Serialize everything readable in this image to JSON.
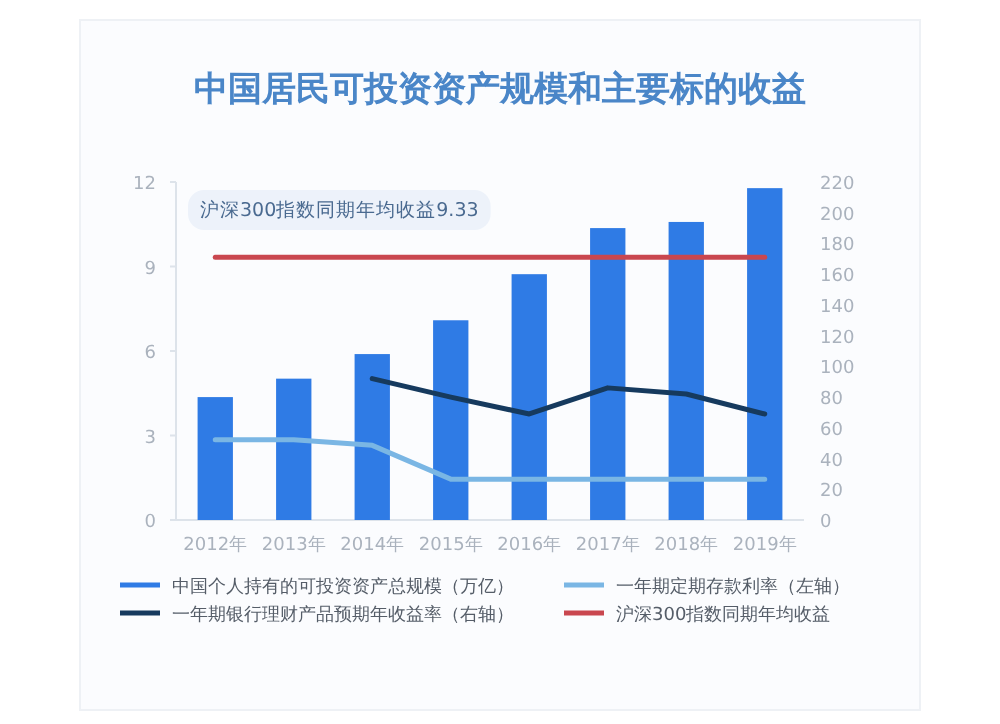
{
  "chart_data": {
    "type": "bar",
    "title": "中国居民可投资资产规模和主要标的收益",
    "categories": [
      "2012年",
      "2013年",
      "2014年",
      "2015年",
      "2016年",
      "2017年",
      "2018年",
      "2019年"
    ],
    "series": [
      {
        "name": "中国个人持有的可投资资产总规模（万亿）",
        "axis": "y2",
        "color": "#2f7be5",
        "values": [
          80,
          92,
          108,
          130,
          160,
          190,
          194,
          216
        ]
      },
      {
        "name": "一年期定期存款利率（左轴）",
        "type": "line",
        "color": "#7ab6e4",
        "values": [
          2.85,
          2.85,
          2.65,
          1.45,
          1.45,
          1.45,
          1.45,
          1.45
        ]
      },
      {
        "name": "一年期银行理财产品预期年收益率（右轴）",
        "type": "line",
        "axis": "y2",
        "color": "#163a5e",
        "values": [
          null,
          null,
          92,
          80,
          69,
          86,
          82,
          69
        ]
      },
      {
        "name": "沪深300指数同期年均收益",
        "type": "line",
        "color": "#c9474f",
        "values": [
          9.33,
          9.33,
          9.33,
          9.33,
          9.33,
          9.33,
          9.33,
          9.33
        ]
      }
    ],
    "ylim": [
      0,
      12
    ],
    "yticks": [
      0,
      3,
      6,
      9,
      12
    ],
    "y2lim": [
      0,
      220
    ],
    "y2ticks": [
      0,
      20,
      40,
      60,
      80,
      100,
      120,
      140,
      160,
      180,
      200,
      220
    ],
    "legend": "bottom",
    "grid": false,
    "annotations": [
      "沪深300指数同期年均收益9.33"
    ]
  }
}
